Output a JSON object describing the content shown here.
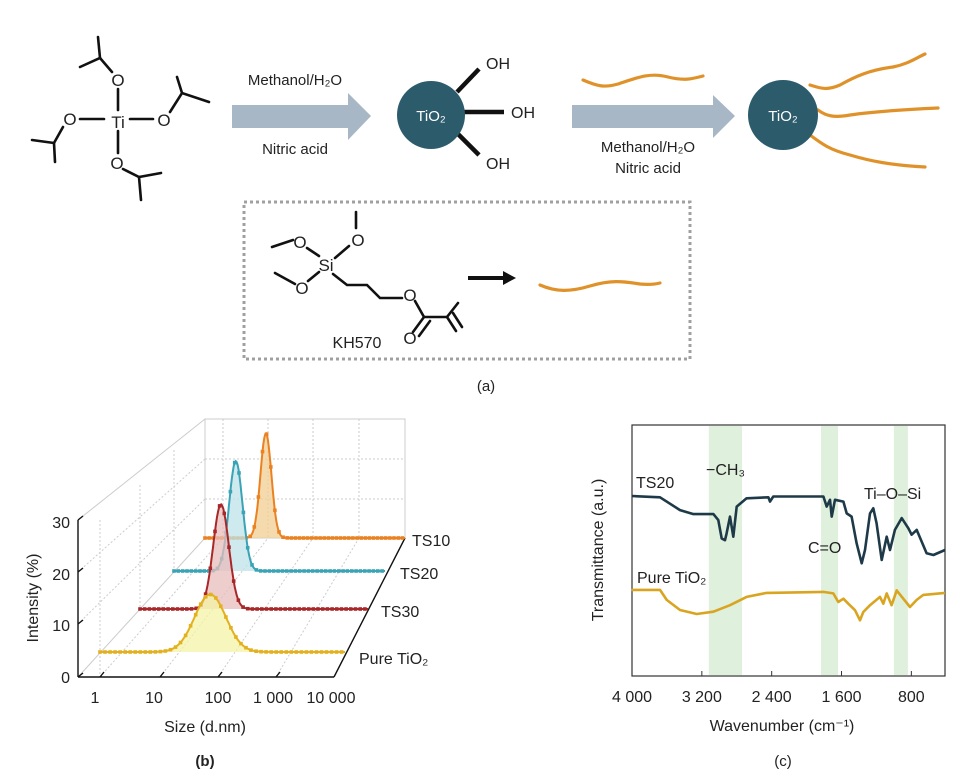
{
  "scheme": {
    "precursor": {
      "ti": "Ti",
      "o": "O"
    },
    "step1": {
      "top_label": "Methanol/H₂O",
      "bottom_label": "Nitric acid"
    },
    "particle_label": "TiO₂",
    "oh_label": "OH",
    "step2": {
      "label_line1": "Methanol/H₂O",
      "label_line2": "Nitric acid"
    },
    "silane": {
      "name": "KH570",
      "si": "Si",
      "o": "O"
    },
    "panel_label": "(a)",
    "colors": {
      "arrow": "#a8b7c6",
      "particle": "#2c5c6c",
      "chain": "#e0922a"
    }
  },
  "chart_data": [
    {
      "id": "b",
      "type": "line",
      "title": "",
      "panel_label": "(b)",
      "xlabel": "Size (d.nm)",
      "ylabel": "Intensity (%)",
      "x_scale": "log",
      "x_ticks": [
        "1",
        "10",
        "100",
        "1 000",
        "10 000"
      ],
      "y_ticks": [
        "0",
        "10",
        "20",
        "30"
      ],
      "ylim": [
        0,
        30
      ],
      "xlim": [
        0.4,
        10000
      ],
      "series": [
        {
          "name": "Pure TiO₂",
          "peak_size_nm": 39,
          "peak_intensity": 11,
          "log_width": 0.28,
          "color": "#e3b020",
          "fill": "#f4f3a6"
        },
        {
          "name": "TS30",
          "peak_size_nm": 15,
          "peak_intensity": 20,
          "log_width": 0.15,
          "color": "#a8282a",
          "fill": "#e8bcbc"
        },
        {
          "name": "TS20",
          "peak_size_nm": 8,
          "peak_intensity": 21,
          "log_width": 0.14,
          "color": "#3aa3b5",
          "fill": "#bfe3ea"
        },
        {
          "name": "TS10",
          "peak_size_nm": 9,
          "peak_intensity": 20,
          "log_width": 0.12,
          "color": "#ea8222",
          "fill": "#f2cd92"
        }
      ]
    },
    {
      "id": "c",
      "type": "line",
      "title": "",
      "panel_label": "(c)",
      "xlabel": "Wavenumber (cm⁻¹)",
      "ylabel": "Transmittance (a.u.)",
      "x_ticks": [
        "4 000",
        "3 200",
        "2 400",
        "1 600",
        "800"
      ],
      "x_tick_values": [
        4000,
        3200,
        2400,
        1600,
        800
      ],
      "xlim": [
        4000,
        400
      ],
      "ylim": [
        0,
        100
      ],
      "highlight_bands": [
        [
          3120,
          2740
        ],
        [
          1835,
          1640
        ],
        [
          1000,
          840
        ]
      ],
      "band_color": "#dff0dc",
      "annotations": [
        "−CH₃",
        "C=O",
        "Ti–O–Si"
      ],
      "series": [
        {
          "name": "TS20",
          "color": "#1e3a48",
          "points": [
            [
              4004,
              71.7
            ],
            [
              3679,
              71.2
            ],
            [
              3450,
              66.1
            ],
            [
              3297,
              64.5
            ],
            [
              3068,
              64.5
            ],
            [
              3011,
              62.1
            ],
            [
              2973,
              54.8
            ],
            [
              2935,
              54.1
            ],
            [
              2916,
              56.8
            ],
            [
              2878,
              63.5
            ],
            [
              2840,
              55.5
            ],
            [
              2801,
              67.5
            ],
            [
              2687,
              70.8
            ],
            [
              2438,
              71.2
            ],
            [
              2419,
              69.5
            ],
            [
              2381,
              71.5
            ],
            [
              1808,
              71.5
            ],
            [
              1770,
              67.5
            ],
            [
              1732,
              70.2
            ],
            [
              1713,
              63.5
            ],
            [
              1675,
              70.2
            ],
            [
              1579,
              69.5
            ],
            [
              1541,
              64.8
            ],
            [
              1484,
              63.5
            ],
            [
              1427,
              52.9
            ],
            [
              1369,
              44.9
            ],
            [
              1331,
              50.2
            ],
            [
              1274,
              64.8
            ],
            [
              1236,
              66.8
            ],
            [
              1198,
              60.8
            ],
            [
              1140,
              46.2
            ],
            [
              1083,
              55.5
            ],
            [
              1045,
              50.2
            ],
            [
              988,
              58.2
            ],
            [
              911,
              62.9
            ],
            [
              835,
              58.9
            ],
            [
              797,
              56.3
            ],
            [
              739,
              58.2
            ],
            [
              625,
              48.9
            ],
            [
              548,
              48.2
            ],
            [
              415,
              50.2
            ]
          ]
        },
        {
          "name": "Pure TiO₂",
          "color": "#d9a521",
          "points": [
            [
              4004,
              34.3
            ],
            [
              3679,
              34.3
            ],
            [
              3603,
              30.3
            ],
            [
              3450,
              26.3
            ],
            [
              3259,
              24.7
            ],
            [
              3068,
              25.6
            ],
            [
              2878,
              28.2
            ],
            [
              2687,
              31.5
            ],
            [
              2458,
              33.1
            ],
            [
              1808,
              33.5
            ],
            [
              1694,
              32.9
            ],
            [
              1637,
              29.5
            ],
            [
              1579,
              30.8
            ],
            [
              1522,
              28.8
            ],
            [
              1446,
              26.2
            ],
            [
              1388,
              22.2
            ],
            [
              1350,
              25.5
            ],
            [
              1274,
              28.2
            ],
            [
              1159,
              31.5
            ],
            [
              1121,
              28.8
            ],
            [
              1083,
              32.9
            ],
            [
              1026,
              28.2
            ],
            [
              968,
              34.1
            ],
            [
              892,
              30.8
            ],
            [
              816,
              27.5
            ],
            [
              739,
              30.3
            ],
            [
              663,
              32.3
            ],
            [
              415,
              33.1
            ]
          ]
        }
      ]
    }
  ]
}
